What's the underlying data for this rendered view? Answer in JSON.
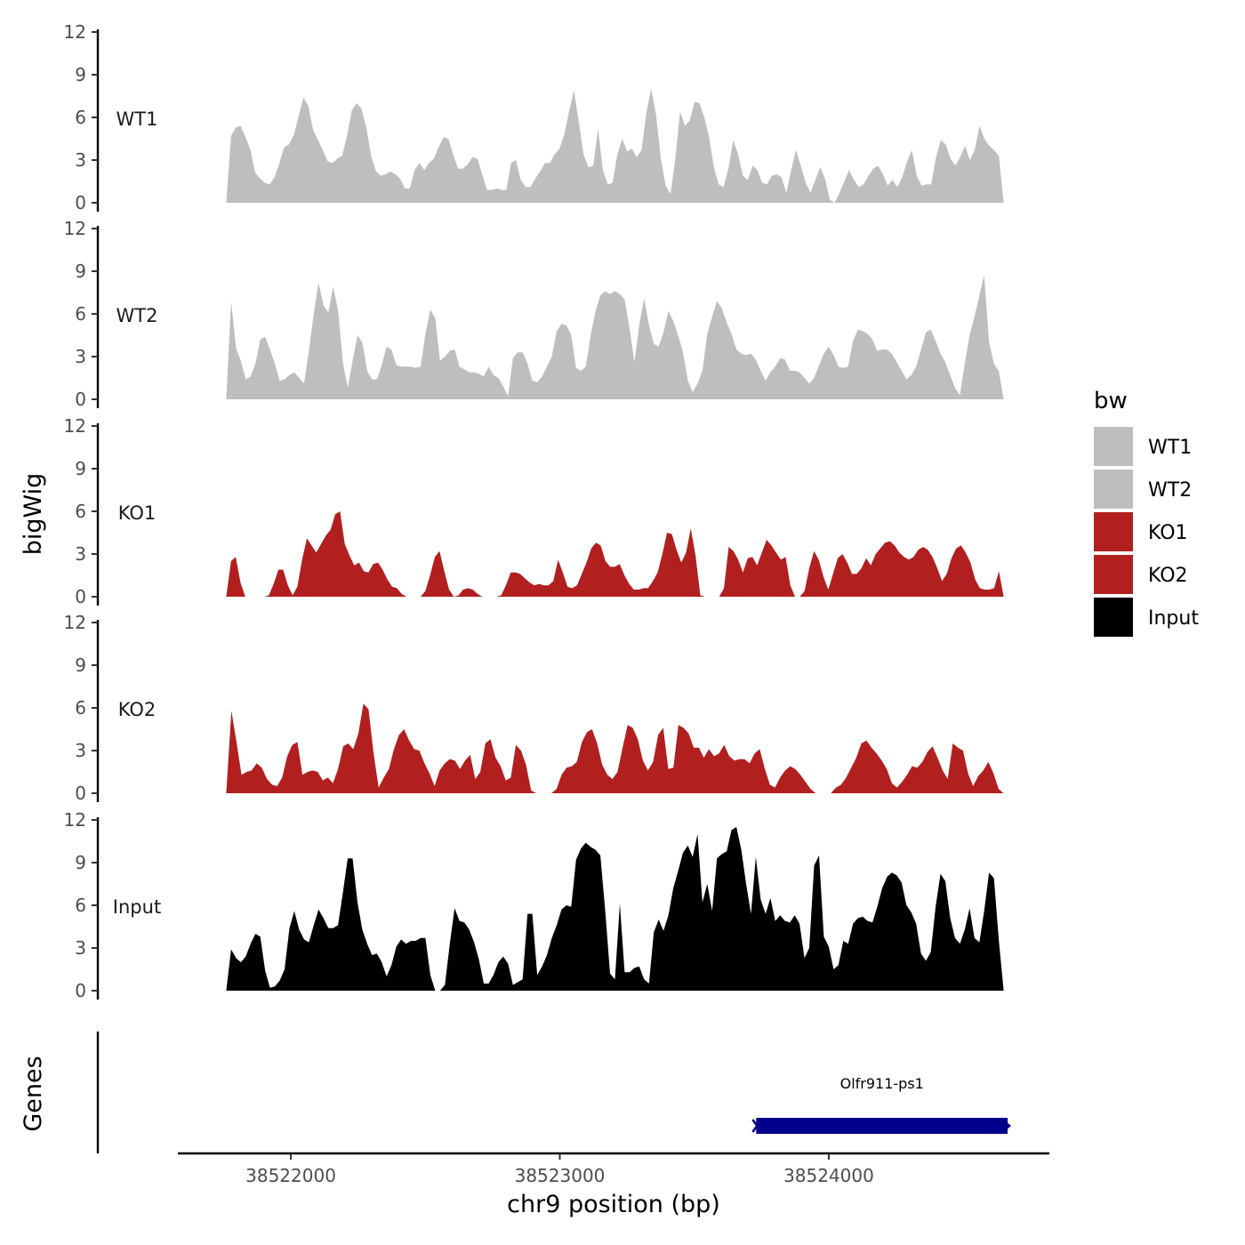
{
  "chart_data": {
    "type": "area",
    "title": "",
    "ylabel": "bigWig",
    "xlabel": "chr9 position (bp)",
    "xlim": [
      38521580,
      38524820
    ],
    "x_track_range": [
      38521760,
      38524650
    ],
    "ylim": [
      0,
      12
    ],
    "y_ticks": [
      "0",
      "3",
      "6",
      "9",
      "12"
    ],
    "x_ticks": [
      {
        "value": 38522000,
        "label": "38522000"
      },
      {
        "value": 38523000,
        "label": "38523000"
      },
      {
        "value": 38524000,
        "label": "38524000"
      }
    ],
    "colors": {
      "WT1": "#bebebe",
      "WT2": "#bebebe",
      "KO1": "#b21f1f",
      "KO2": "#b21f1f",
      "Input": "#000000",
      "gene": "#00008b",
      "axis": "#000000"
    },
    "series": [
      {
        "name": "WT1",
        "values": [
          0.0,
          4.7,
          5.3,
          5.4,
          4.6,
          3.7,
          2.1,
          1.7,
          1.4,
          1.3,
          1.8,
          2.8,
          3.9,
          4.1,
          4.8,
          6.1,
          7.4,
          6.8,
          5.1,
          4.4,
          3.7,
          2.9,
          2.8,
          3.1,
          3.3,
          4.7,
          6.5,
          7.0,
          6.6,
          5.3,
          3.3,
          2.2,
          1.9,
          2.0,
          2.2,
          2.0,
          1.7,
          1.0,
          1.0,
          2.3,
          2.8,
          2.3,
          2.8,
          3.1,
          3.9,
          4.6,
          4.5,
          3.4,
          2.4,
          2.4,
          2.7,
          3.2,
          3.1,
          2.0,
          0.9,
          0.9,
          1.0,
          0.9,
          0.9,
          2.8,
          3.0,
          1.6,
          1.1,
          1.1,
          1.7,
          2.2,
          2.8,
          2.8,
          3.4,
          3.8,
          4.8,
          6.4,
          7.9,
          5.7,
          3.4,
          2.5,
          2.6,
          5.2,
          2.3,
          1.3,
          1.4,
          3.4,
          4.5,
          3.6,
          3.8,
          3.2,
          3.7,
          6.3,
          8.0,
          6.2,
          3.1,
          1.2,
          0.6,
          3.1,
          6.4,
          5.4,
          5.8,
          7.1,
          7.0,
          6.0,
          4.6,
          2.5,
          1.3,
          1.1,
          2.4,
          4.4,
          3.4,
          1.9,
          1.6,
          2.6,
          2.3,
          1.4,
          1.3,
          1.9,
          2.0,
          1.8,
          0.7,
          2.3,
          3.7,
          2.6,
          1.4,
          0.7,
          1.6,
          2.5,
          1.7,
          0.2,
          0.0,
          0.7,
          1.5,
          2.3,
          1.6,
          1.1,
          1.3,
          1.9,
          2.4,
          2.6,
          2.0,
          1.2,
          1.6,
          1.1,
          1.8,
          2.9,
          3.7,
          1.9,
          1.2,
          1.3,
          1.3,
          3.2,
          4.4,
          4.1,
          3.1,
          2.6,
          3.2,
          4.0,
          3.0,
          3.7,
          5.4,
          4.5,
          4.0,
          3.7,
          3.3,
          0.0
        ]
      },
      {
        "name": "WT2",
        "values": [
          0.0,
          6.9,
          3.6,
          2.7,
          1.4,
          1.6,
          2.5,
          4.2,
          4.4,
          3.5,
          2.5,
          1.3,
          1.4,
          1.7,
          1.9,
          1.5,
          1.1,
          3.4,
          6.0,
          8.2,
          6.6,
          6.1,
          7.9,
          6.3,
          2.6,
          0.8,
          2.7,
          4.5,
          4.0,
          2.0,
          1.4,
          1.4,
          2.4,
          3.7,
          3.5,
          2.4,
          2.3,
          2.3,
          2.3,
          2.2,
          2.3,
          4.6,
          6.3,
          5.7,
          2.7,
          3.0,
          3.4,
          3.5,
          2.3,
          2.1,
          1.9,
          1.9,
          1.8,
          1.6,
          2.3,
          1.7,
          1.5,
          0.9,
          0.2,
          2.9,
          3.3,
          3.3,
          2.5,
          1.3,
          1.2,
          1.6,
          2.3,
          3.0,
          4.8,
          5.3,
          5.2,
          4.5,
          2.2,
          2.0,
          2.3,
          4.5,
          6.2,
          7.3,
          7.6,
          7.4,
          7.6,
          7.4,
          7.0,
          5.0,
          2.6,
          5.2,
          7.1,
          5.2,
          3.9,
          3.7,
          4.7,
          6.2,
          5.5,
          4.5,
          3.3,
          1.3,
          0.5,
          1.1,
          2.0,
          4.6,
          5.8,
          6.9,
          6.4,
          5.4,
          4.6,
          3.5,
          3.2,
          3.1,
          3.2,
          2.8,
          2.0,
          1.3,
          1.9,
          2.3,
          2.9,
          2.8,
          2.0,
          2.0,
          1.9,
          1.5,
          1.1,
          1.5,
          2.4,
          3.2,
          3.7,
          3.1,
          2.3,
          2.2,
          2.3,
          4.1,
          4.9,
          4.8,
          4.6,
          4.2,
          3.4,
          3.5,
          3.5,
          3.2,
          2.6,
          2.0,
          1.4,
          1.7,
          2.3,
          3.5,
          4.7,
          4.9,
          4.1,
          3.2,
          2.6,
          1.7,
          0.8,
          0.3,
          2.5,
          4.5,
          5.8,
          7.3,
          8.7,
          4.0,
          2.5,
          2.0,
          0.0
        ]
      },
      {
        "name": "KO1",
        "values": [
          0.0,
          2.5,
          2.8,
          1.0,
          0.0,
          0.0,
          0.0,
          0.0,
          0.0,
          0.1,
          0.9,
          1.9,
          1.9,
          0.8,
          0.1,
          0.7,
          2.6,
          4.1,
          3.6,
          3.1,
          3.7,
          4.3,
          4.7,
          5.8,
          6.0,
          3.7,
          2.9,
          2.2,
          2.4,
          1.8,
          1.7,
          2.3,
          2.4,
          1.9,
          1.2,
          0.7,
          0.6,
          0.2,
          0.0,
          0.0,
          0.0,
          0.0,
          0.4,
          1.5,
          2.8,
          3.2,
          1.8,
          0.5,
          0.0,
          0.1,
          0.5,
          0.6,
          0.5,
          0.2,
          0.0,
          0.0,
          0.0,
          0.0,
          0.1,
          0.8,
          1.7,
          1.7,
          1.6,
          1.3,
          1.0,
          0.8,
          0.9,
          0.8,
          0.8,
          1.1,
          2.6,
          1.7,
          0.7,
          0.6,
          0.8,
          1.6,
          2.4,
          3.4,
          3.8,
          3.6,
          2.5,
          2.1,
          2.1,
          2.3,
          1.5,
          0.9,
          0.5,
          0.5,
          0.6,
          0.6,
          1.1,
          1.7,
          3.0,
          4.5,
          4.4,
          3.3,
          2.4,
          3.1,
          4.8,
          2.9,
          0.1,
          0.0,
          0.0,
          0.0,
          0.0,
          0.6,
          3.5,
          3.2,
          2.6,
          1.7,
          2.7,
          2.8,
          2.2,
          3.1,
          4.0,
          3.6,
          3.1,
          2.6,
          2.8,
          0.8,
          0.0,
          0.0,
          0.4,
          2.0,
          3.2,
          2.6,
          1.4,
          0.5,
          1.6,
          2.7,
          3.0,
          2.4,
          1.6,
          1.6,
          2.0,
          2.7,
          2.2,
          3.0,
          3.4,
          3.8,
          3.9,
          3.6,
          3.1,
          2.8,
          2.6,
          2.8,
          3.3,
          3.5,
          3.3,
          2.8,
          2.0,
          1.1,
          1.6,
          2.7,
          3.4,
          3.6,
          3.1,
          2.4,
          1.2,
          0.6,
          0.5,
          0.5,
          0.6,
          1.8,
          0.0
        ]
      },
      {
        "name": "KO2",
        "values": [
          0.0,
          5.8,
          3.6,
          1.3,
          1.5,
          1.6,
          2.1,
          1.8,
          1.0,
          0.6,
          0.5,
          1.1,
          2.6,
          3.4,
          3.6,
          1.3,
          1.5,
          1.6,
          1.5,
          0.9,
          1.1,
          0.7,
          1.7,
          3.3,
          3.5,
          3.1,
          4.2,
          6.3,
          5.9,
          2.8,
          0.4,
          1.1,
          1.7,
          3.1,
          4.1,
          4.5,
          3.7,
          3.1,
          3.0,
          2.1,
          1.4,
          0.5,
          1.6,
          2.1,
          2.4,
          2.3,
          1.7,
          2.3,
          2.7,
          1.0,
          1.5,
          3.5,
          3.8,
          2.5,
          1.9,
          0.9,
          1.1,
          3.4,
          3.0,
          2.0,
          0.2,
          0.0,
          0.0,
          0.0,
          0.0,
          0.3,
          1.3,
          1.8,
          1.9,
          2.2,
          3.6,
          4.3,
          4.5,
          3.5,
          2.0,
          1.3,
          1.0,
          1.5,
          3.2,
          4.8,
          4.6,
          3.8,
          2.3,
          1.6,
          2.2,
          4.1,
          4.6,
          1.7,
          1.8,
          4.8,
          4.6,
          4.2,
          3.2,
          3.2,
          2.5,
          3.1,
          2.6,
          2.8,
          3.4,
          2.6,
          2.3,
          2.4,
          2.4,
          2.1,
          2.8,
          3.1,
          1.7,
          0.6,
          0.4,
          1.1,
          1.6,
          1.9,
          1.7,
          1.3,
          0.8,
          0.3,
          0.0,
          0.0,
          0.0,
          0.0,
          0.4,
          0.6,
          1.1,
          1.8,
          2.5,
          3.5,
          3.7,
          3.2,
          2.8,
          2.3,
          1.7,
          0.7,
          0.4,
          0.8,
          1.3,
          1.9,
          1.8,
          2.2,
          2.9,
          3.3,
          2.5,
          1.6,
          1.0,
          3.5,
          3.2,
          3.0,
          1.4,
          0.5,
          1.2,
          1.6,
          2.2,
          1.4,
          0.3,
          0.0
        ]
      },
      {
        "name": "Input",
        "values": [
          0.0,
          2.9,
          2.3,
          2.0,
          2.4,
          3.3,
          4.0,
          3.8,
          1.4,
          0.2,
          0.3,
          0.7,
          1.5,
          4.4,
          5.6,
          4.3,
          3.6,
          3.4,
          4.6,
          5.7,
          5.1,
          4.4,
          4.4,
          4.6,
          6.9,
          9.3,
          9.3,
          6.2,
          4.3,
          3.3,
          2.5,
          2.6,
          2.0,
          1.0,
          1.8,
          3.1,
          3.6,
          3.3,
          3.5,
          3.5,
          3.7,
          3.7,
          1.1,
          0.0,
          0.0,
          0.4,
          3.3,
          5.8,
          4.9,
          4.8,
          4.3,
          3.4,
          2.2,
          0.5,
          0.5,
          1.1,
          2.0,
          2.4,
          1.9,
          0.4,
          0.6,
          0.8,
          5.4,
          5.4,
          1.1,
          1.7,
          2.5,
          3.7,
          4.6,
          5.7,
          6.0,
          5.9,
          9.2,
          10.0,
          10.4,
          10.1,
          9.9,
          9.5,
          5.6,
          1.2,
          0.8,
          6.1,
          1.3,
          1.3,
          1.6,
          1.7,
          0.8,
          0.5,
          4.1,
          5.0,
          4.2,
          5.3,
          7.2,
          8.4,
          9.7,
          10.2,
          9.4,
          11.0,
          6.2,
          7.5,
          5.6,
          9.3,
          9.6,
          9.8,
          11.3,
          11.5,
          9.9,
          7.5,
          5.4,
          9.4,
          6.4,
          5.4,
          6.5,
          4.9,
          5.3,
          4.9,
          4.8,
          5.3,
          4.7,
          2.3,
          3.0,
          8.8,
          9.5,
          3.8,
          3.1,
          1.5,
          1.8,
          3.5,
          3.3,
          4.7,
          5.1,
          5.2,
          4.9,
          4.8,
          5.9,
          7.2,
          8.0,
          8.3,
          8.1,
          7.6,
          6.0,
          5.5,
          4.7,
          2.6,
          2.1,
          2.7,
          5.9,
          8.2,
          7.7,
          5.1,
          3.7,
          3.3,
          4.3,
          5.8,
          3.7,
          3.4,
          5.6,
          8.3,
          7.9,
          3.6,
          0.0
        ]
      }
    ],
    "gene_track": {
      "label": "Genes",
      "gene_name": "Olfr911-ps1",
      "start": 38523730,
      "end": 38524665,
      "strand": "-"
    },
    "legend": {
      "title": "bw",
      "position": "right",
      "entries": [
        "WT1",
        "WT2",
        "KO1",
        "KO2",
        "Input"
      ]
    }
  }
}
